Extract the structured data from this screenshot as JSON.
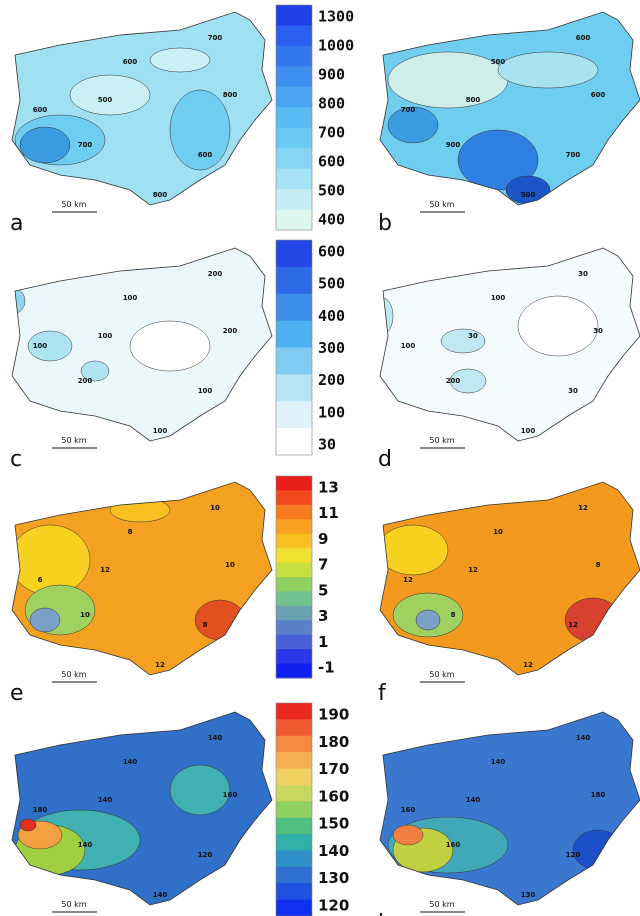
{
  "panels": [
    {
      "label": "a",
      "scale": "50 km",
      "contours": [
        700,
        600,
        500,
        800,
        600,
        700,
        600,
        800
      ]
    },
    {
      "label": "b",
      "scale": "50 km",
      "contours": [
        600,
        500,
        800,
        600,
        700,
        900,
        700,
        500
      ]
    },
    {
      "label": "c",
      "scale": "50 km",
      "contours": [
        200,
        100,
        100,
        200,
        100,
        200,
        100,
        100
      ]
    },
    {
      "label": "d",
      "scale": "50 km",
      "contours": [
        30,
        100,
        30,
        30,
        100,
        200,
        30,
        100
      ]
    },
    {
      "label": "e",
      "scale": "50 km",
      "contours": [
        10,
        8,
        12,
        10,
        6,
        10,
        8,
        12
      ]
    },
    {
      "label": "f",
      "scale": "50 km",
      "contours": [
        12,
        10,
        12,
        8,
        12,
        8,
        12,
        12
      ]
    },
    {
      "label": "g",
      "scale": "50 km",
      "contours": [
        140,
        140,
        140,
        160,
        180,
        140,
        120,
        140
      ]
    },
    {
      "label": "h",
      "scale": "50 km",
      "contours": [
        140,
        140,
        140,
        180,
        160,
        160,
        120,
        130
      ]
    }
  ],
  "colorbars": [
    {
      "labels": [
        1300,
        1000,
        900,
        800,
        700,
        600,
        500,
        400
      ]
    },
    {
      "labels": [
        600,
        500,
        400,
        300,
        200,
        100,
        30
      ]
    },
    {
      "labels": [
        13,
        11,
        9,
        7,
        5,
        3,
        1,
        -1
      ]
    },
    {
      "labels": [
        190,
        180,
        170,
        160,
        150,
        140,
        130,
        120
      ]
    }
  ]
}
